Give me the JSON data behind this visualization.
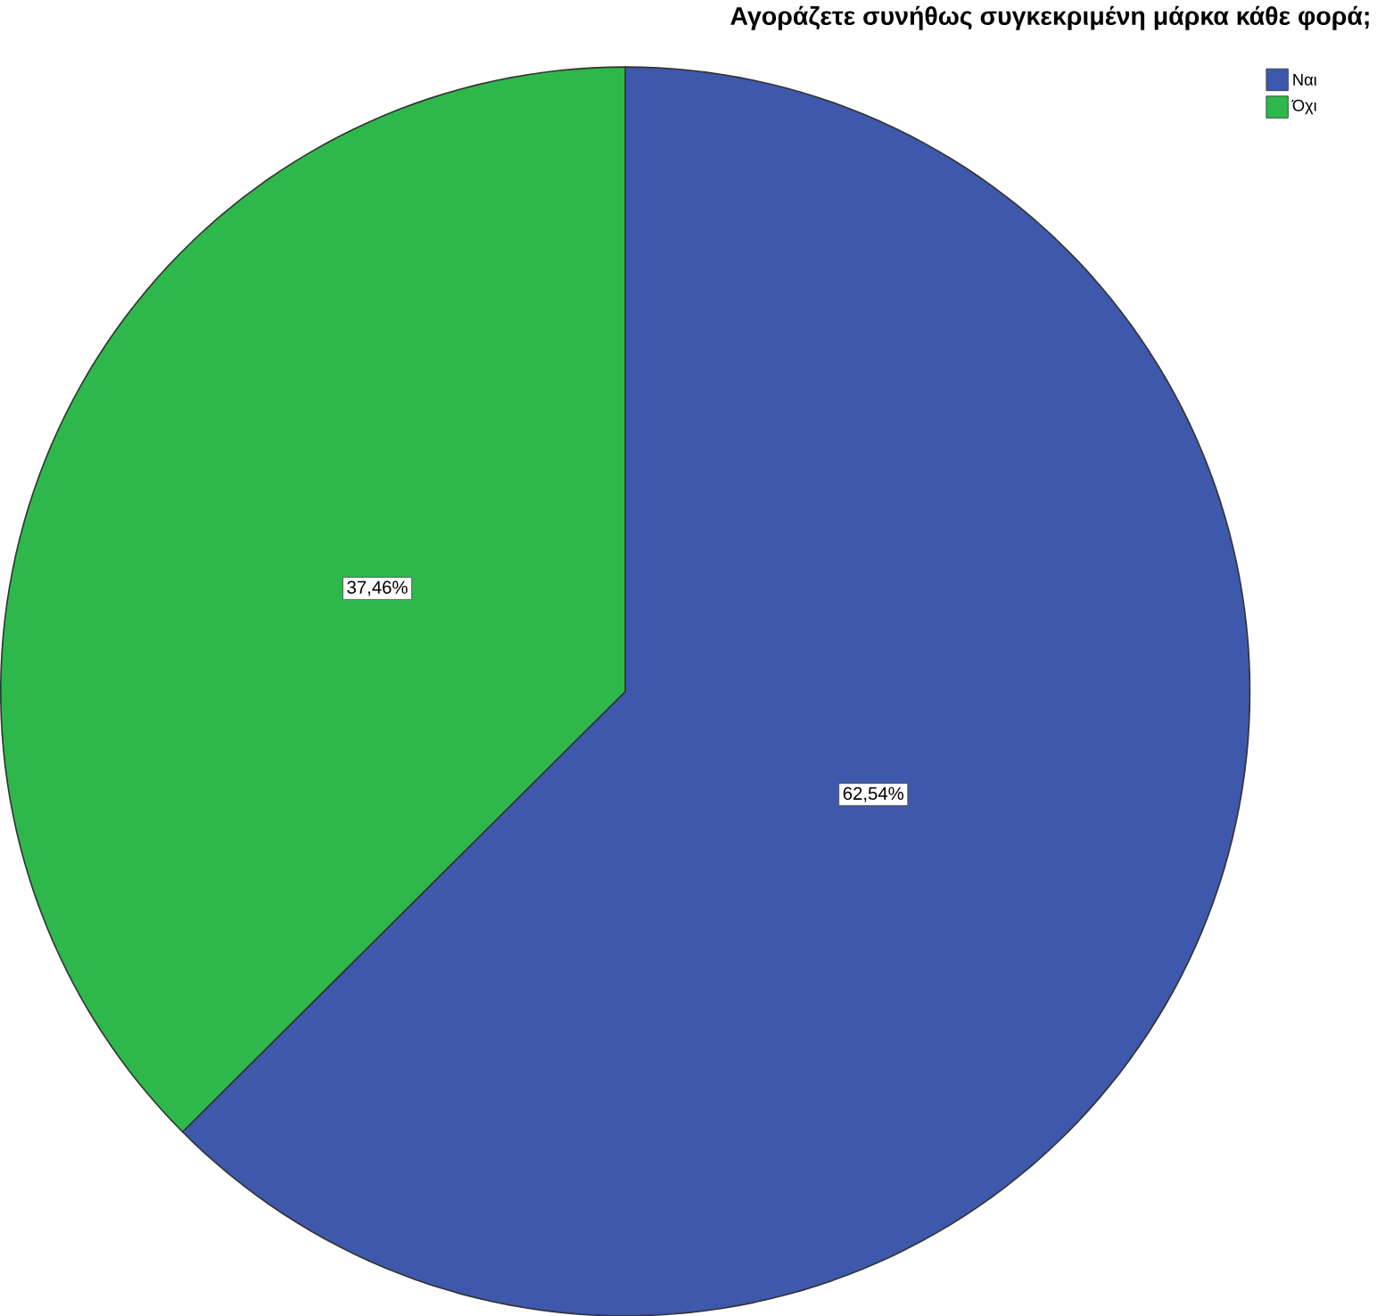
{
  "chart_data": {
    "type": "pie",
    "title": "Αγοράζετε συνήθως συγκεκριμένη μάρκα κάθε φορά;",
    "categories": [
      "Ναι",
      "Όχι"
    ],
    "values": [
      62.54,
      37.46
    ],
    "colors": [
      "#3e58ac",
      "#2eb84b"
    ],
    "value_labels": [
      "62,54%",
      "37,46%"
    ],
    "legend": "top right"
  }
}
